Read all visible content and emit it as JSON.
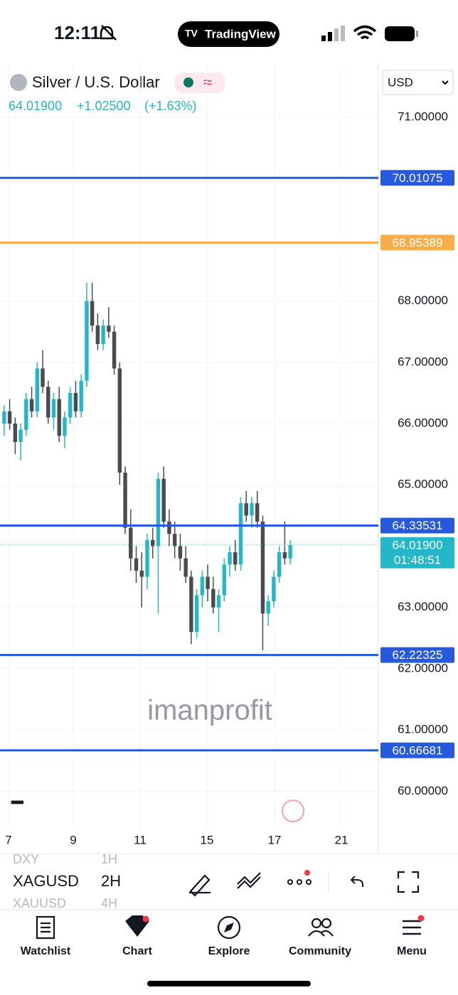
{
  "status_bar": {
    "time": "12:11",
    "app": "TradingView"
  },
  "header": {
    "symbol": "Silver / U.S. Dollar",
    "price": "64.01900",
    "change": "+1.02500",
    "change_pct": "(+1.63%)",
    "currency": "USD"
  },
  "chart_data": {
    "type": "candlestick",
    "ylim": [
      59.4,
      71.87
    ],
    "yticks": [
      {
        "value": 71,
        "label": "71.00000"
      },
      {
        "value": 68,
        "label": "68.00000"
      },
      {
        "value": 67,
        "label": "67.00000"
      },
      {
        "value": 66,
        "label": "66.00000"
      },
      {
        "value": 65,
        "label": "65.00000"
      },
      {
        "value": 63,
        "label": "63.00000"
      },
      {
        "value": 62,
        "label": "62.00000"
      },
      {
        "value": 61,
        "label": "61.00000"
      },
      {
        "value": 60,
        "label": "60.00000"
      }
    ],
    "x_labels": [
      "7",
      "9",
      "11",
      "15",
      "17",
      "21"
    ],
    "up_color": "#22b8c8",
    "down_color": "#4b4b4f",
    "ohlc": [
      [
        66.0,
        66.3,
        65.8,
        66.2
      ],
      [
        66.2,
        66.4,
        65.9,
        66.0
      ],
      [
        66.0,
        66.1,
        65.5,
        65.7
      ],
      [
        65.7,
        66.0,
        65.4,
        65.9
      ],
      [
        65.9,
        66.5,
        65.8,
        66.4
      ],
      [
        66.4,
        66.6,
        66.1,
        66.2
      ],
      [
        66.2,
        67.0,
        66.1,
        66.9
      ],
      [
        66.9,
        67.2,
        66.5,
        66.6
      ],
      [
        66.6,
        66.7,
        66.0,
        66.1
      ],
      [
        66.1,
        66.5,
        65.9,
        66.4
      ],
      [
        66.4,
        66.6,
        65.7,
        65.8
      ],
      [
        65.8,
        66.2,
        65.6,
        66.1
      ],
      [
        66.1,
        66.6,
        66.0,
        66.5
      ],
      [
        66.5,
        66.7,
        66.1,
        66.2
      ],
      [
        66.2,
        66.8,
        66.1,
        66.7
      ],
      [
        66.7,
        68.3,
        66.6,
        68.0
      ],
      [
        68.0,
        68.3,
        67.5,
        67.6
      ],
      [
        67.6,
        67.8,
        67.2,
        67.3
      ],
      [
        67.3,
        67.7,
        67.2,
        67.6
      ],
      [
        67.6,
        67.9,
        67.4,
        67.5
      ],
      [
        67.5,
        67.6,
        66.8,
        66.9
      ],
      [
        66.9,
        67.0,
        65.0,
        65.2
      ],
      [
        65.2,
        65.3,
        64.2,
        64.3
      ],
      [
        64.3,
        64.6,
        63.6,
        63.8
      ],
      [
        63.8,
        64.0,
        63.4,
        63.6
      ],
      [
        63.6,
        63.9,
        63.0,
        63.5
      ],
      [
        63.5,
        64.2,
        63.3,
        64.1
      ],
      [
        64.1,
        64.3,
        63.8,
        64.0
      ],
      [
        64.0,
        65.2,
        62.9,
        65.1
      ],
      [
        65.1,
        65.3,
        64.3,
        64.4
      ],
      [
        64.4,
        64.6,
        64.0,
        64.2
      ],
      [
        64.2,
        64.4,
        63.8,
        64.0
      ],
      [
        64.0,
        64.2,
        63.6,
        63.8
      ],
      [
        63.8,
        64.0,
        63.4,
        63.5
      ],
      [
        63.5,
        63.6,
        62.4,
        62.6
      ],
      [
        62.6,
        63.3,
        62.5,
        63.2
      ],
      [
        63.2,
        63.6,
        63.0,
        63.5
      ],
      [
        63.5,
        63.7,
        63.1,
        63.3
      ],
      [
        63.3,
        63.5,
        62.9,
        63.0
      ],
      [
        63.0,
        63.3,
        62.6,
        63.2
      ],
      [
        63.2,
        63.8,
        63.1,
        63.7
      ],
      [
        63.7,
        64.0,
        63.5,
        63.9
      ],
      [
        63.9,
        64.1,
        63.6,
        63.7
      ],
      [
        63.7,
        64.8,
        63.6,
        64.7
      ],
      [
        64.7,
        64.9,
        64.4,
        64.5
      ],
      [
        64.5,
        64.8,
        64.3,
        64.7
      ],
      [
        64.7,
        64.9,
        64.3,
        64.4
      ],
      [
        64.4,
        64.5,
        62.3,
        62.9
      ],
      [
        62.9,
        63.2,
        62.7,
        63.1
      ],
      [
        63.1,
        63.6,
        63.0,
        63.5
      ],
      [
        63.5,
        64.0,
        63.4,
        63.9
      ],
      [
        63.9,
        64.4,
        63.7,
        63.8
      ],
      [
        63.8,
        64.1,
        63.7,
        64.019
      ]
    ],
    "levels": [
      {
        "value": 70.01075,
        "color": "#2659e0"
      },
      {
        "value": 68.95389,
        "color": "#f8ad45"
      },
      {
        "value": 64.33531,
        "color": "#2659e0"
      },
      {
        "value": 62.22325,
        "color": "#2659e0"
      },
      {
        "value": 60.66681,
        "color": "#2659e0"
      }
    ],
    "last_price": {
      "value": 64.019,
      "label": "64.01900",
      "countdown": "01:48:51"
    },
    "watermark": "imanprofit"
  },
  "toolbar": {
    "symbols": [
      "DXY",
      "XAGUSD",
      "XAUUSD"
    ],
    "intervals": [
      "1H",
      "2H",
      "4H"
    ]
  },
  "nav": [
    "Watchlist",
    "Chart",
    "Explore",
    "Community",
    "Menu"
  ]
}
